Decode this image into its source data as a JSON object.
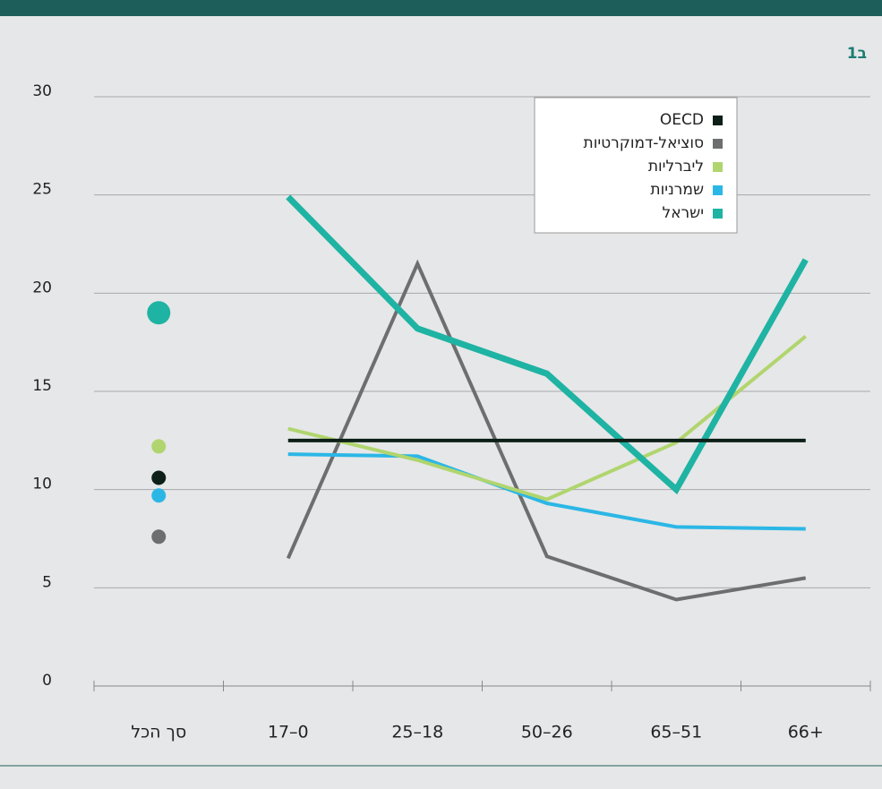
{
  "chart_data": {
    "type": "line",
    "figure_label": "1ב",
    "categories": [
      "סך הכל",
      "17–0",
      "25–18",
      "50–26",
      "65–51",
      "66+"
    ],
    "series": [
      {
        "name": "סוציאל-דמוקרטיות",
        "color": "#6d6e70",
        "values": [
          7.6,
          6.5,
          21.5,
          6.6,
          4.4,
          5.5
        ]
      },
      {
        "name": "שמרניות",
        "color": "#2bb7e6",
        "values": [
          9.7,
          11.8,
          11.7,
          9.3,
          8.1,
          8.0
        ]
      },
      {
        "name": "ליברליות",
        "color": "#b0d56e",
        "values": [
          12.2,
          13.1,
          11.5,
          9.5,
          12.4,
          17.8
        ]
      },
      {
        "name": "ישראל",
        "color": "#1fb3a3",
        "values": [
          19,
          24.9,
          18.2,
          15.9,
          10,
          21.7
        ]
      },
      {
        "name": "OECD",
        "color": "#0d1f17",
        "values": [
          10.6,
          12.5,
          12.5,
          12.5,
          12.5,
          12.5
        ]
      }
    ],
    "legend_order": [
      "OECD",
      "סוציאל-דמוקרטיות",
      "ליברליות",
      "שמרניות",
      "ישראל"
    ],
    "ylim": [
      0,
      30
    ],
    "yticks": [
      0,
      5,
      10,
      15,
      20,
      25,
      30
    ],
    "grid": true
  }
}
